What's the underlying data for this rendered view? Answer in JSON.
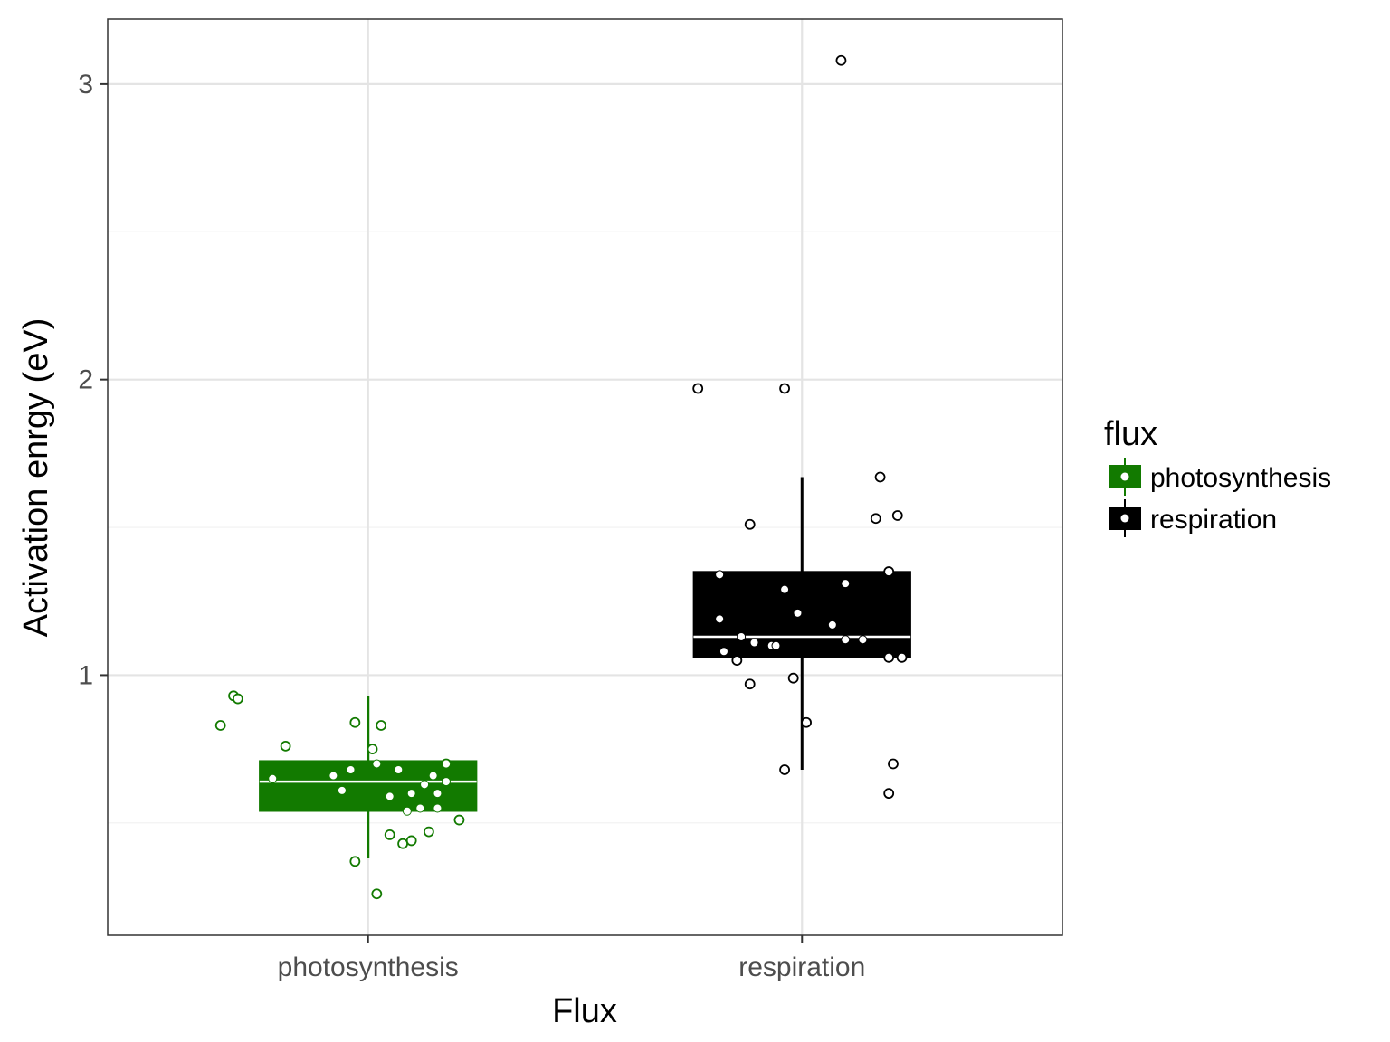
{
  "chart_data": {
    "type": "boxplot",
    "xlabel": "Flux",
    "ylabel": "Activation enrgy (eV)",
    "ylim": [
      0.12,
      3.22
    ],
    "yticks": [
      1,
      2,
      3
    ],
    "y_minor_ticks": [
      1.5,
      2.5,
      0.5
    ],
    "ytick_labels": [
      "1",
      "2",
      "3"
    ],
    "categories": [
      "photosynthesis",
      "respiration"
    ],
    "legend": {
      "title": "flux",
      "position": "right",
      "entries": [
        "photosynthesis",
        "respiration"
      ]
    },
    "series": [
      {
        "name": "photosynthesis",
        "color": "#127a00",
        "box": {
          "whisker_low": 0.38,
          "q1": 0.54,
          "median": 0.64,
          "q3": 0.71,
          "whisker_high": 0.93
        },
        "points_inside": [
          {
            "x": 0.78,
            "y": 0.65
          },
          {
            "x": 0.92,
            "y": 0.66
          },
          {
            "x": 0.94,
            "y": 0.61
          },
          {
            "x": 0.96,
            "y": 0.68
          },
          {
            "x": 1.02,
            "y": 0.7
          },
          {
            "x": 1.05,
            "y": 0.59
          },
          {
            "x": 1.07,
            "y": 0.68
          },
          {
            "x": 1.1,
            "y": 0.6
          },
          {
            "x": 1.13,
            "y": 0.63
          },
          {
            "x": 1.15,
            "y": 0.66
          },
          {
            "x": 1.16,
            "y": 0.6
          },
          {
            "x": 1.18,
            "y": 0.64
          },
          {
            "x": 1.09,
            "y": 0.54
          },
          {
            "x": 1.12,
            "y": 0.55
          },
          {
            "x": 1.16,
            "y": 0.55
          }
        ],
        "points_outside": [
          {
            "x": 0.66,
            "y": 0.83
          },
          {
            "x": 0.69,
            "y": 0.93
          },
          {
            "x": 0.7,
            "y": 0.92
          },
          {
            "x": 0.81,
            "y": 0.76
          },
          {
            "x": 0.97,
            "y": 0.84
          },
          {
            "x": 1.01,
            "y": 0.75
          },
          {
            "x": 1.03,
            "y": 0.83
          },
          {
            "x": 1.18,
            "y": 0.7
          },
          {
            "x": 1.21,
            "y": 0.51
          },
          {
            "x": 0.97,
            "y": 0.37
          },
          {
            "x": 1.05,
            "y": 0.46
          },
          {
            "x": 1.08,
            "y": 0.43
          },
          {
            "x": 1.1,
            "y": 0.44
          },
          {
            "x": 1.14,
            "y": 0.47
          },
          {
            "x": 1.02,
            "y": 0.26
          }
        ]
      },
      {
        "name": "respiration",
        "color": "#000000",
        "box": {
          "whisker_low": 0.68,
          "q1": 1.06,
          "median": 1.13,
          "q3": 1.35,
          "whisker_high": 1.67
        },
        "points_inside": [
          {
            "x": 1.81,
            "y": 1.34
          },
          {
            "x": 1.81,
            "y": 1.19
          },
          {
            "x": 1.82,
            "y": 1.08
          },
          {
            "x": 1.86,
            "y": 1.13
          },
          {
            "x": 1.89,
            "y": 1.11
          },
          {
            "x": 1.93,
            "y": 1.1
          },
          {
            "x": 1.94,
            "y": 1.1
          },
          {
            "x": 1.96,
            "y": 1.29
          },
          {
            "x": 1.99,
            "y": 1.21
          },
          {
            "x": 2.07,
            "y": 1.17
          },
          {
            "x": 2.1,
            "y": 1.31
          },
          {
            "x": 2.1,
            "y": 1.12
          },
          {
            "x": 2.14,
            "y": 1.12
          }
        ],
        "points_outside": [
          {
            "x": 1.76,
            "y": 1.97
          },
          {
            "x": 1.96,
            "y": 1.97
          },
          {
            "x": 2.09,
            "y": 3.08
          },
          {
            "x": 1.88,
            "y": 1.51
          },
          {
            "x": 2.18,
            "y": 1.67
          },
          {
            "x": 2.17,
            "y": 1.53
          },
          {
            "x": 2.22,
            "y": 1.54
          },
          {
            "x": 2.2,
            "y": 1.35
          },
          {
            "x": 1.85,
            "y": 1.05
          },
          {
            "x": 2.2,
            "y": 1.06
          },
          {
            "x": 2.23,
            "y": 1.06
          },
          {
            "x": 1.88,
            "y": 0.97
          },
          {
            "x": 1.98,
            "y": 0.99
          },
          {
            "x": 2.01,
            "y": 0.84
          },
          {
            "x": 1.96,
            "y": 0.68
          },
          {
            "x": 2.21,
            "y": 0.7
          },
          {
            "x": 2.2,
            "y": 0.6
          }
        ]
      }
    ]
  }
}
